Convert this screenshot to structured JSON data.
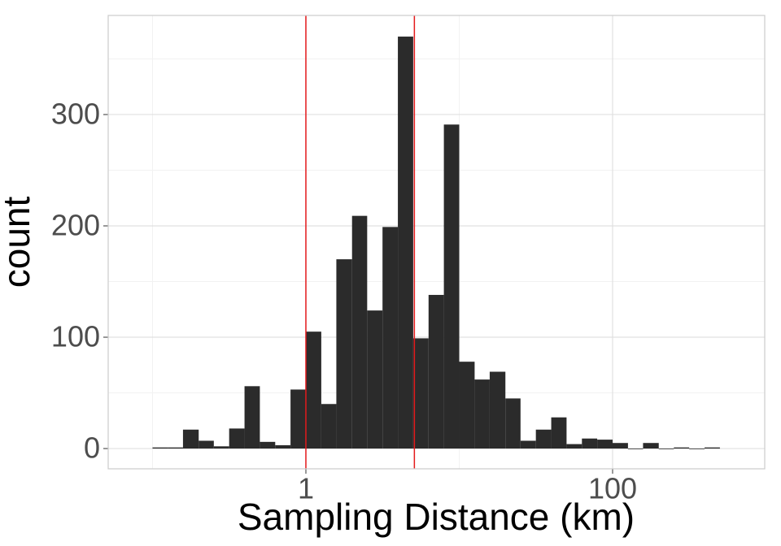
{
  "chart_data": {
    "type": "histogram",
    "x_label": "Sampling Distance (km)",
    "y_label": "count",
    "bins": [
      0.1,
      0.126,
      0.158,
      0.2,
      0.251,
      0.316,
      0.398,
      0.501,
      0.631,
      0.794,
      1,
      1.26,
      1.58,
      2,
      2.51,
      3.16,
      3.98,
      5.01,
      6.31,
      7.94,
      10,
      12.6,
      15.8,
      20,
      25.1,
      31.6,
      39.8,
      50.1,
      63.1,
      79.4,
      100,
      126,
      158,
      200,
      251,
      316,
      398,
      501
    ],
    "values": [
      1,
      1,
      17,
      7,
      2,
      18,
      56,
      6,
      3,
      53,
      105,
      40,
      170,
      209,
      124,
      199,
      370,
      99,
      138,
      291,
      78,
      62,
      69,
      45,
      7,
      17,
      28,
      4,
      9,
      8,
      5,
      0,
      5,
      0,
      1,
      0,
      1
    ],
    "color": "#2b2b2b",
    "vlines": [
      1,
      5.1
    ],
    "vline_color": "#e41a1c",
    "x_log": true,
    "xlim": [
      0.0514,
      982
    ],
    "xticks": [
      1,
      100
    ],
    "x_minor_ticks": [
      0.1,
      10
    ],
    "ylim": [
      -18.2,
      389
    ],
    "yticks": [
      0,
      100,
      200,
      300
    ],
    "y_minor_ticks": [
      50,
      150,
      250,
      350
    ],
    "grid": true
  }
}
